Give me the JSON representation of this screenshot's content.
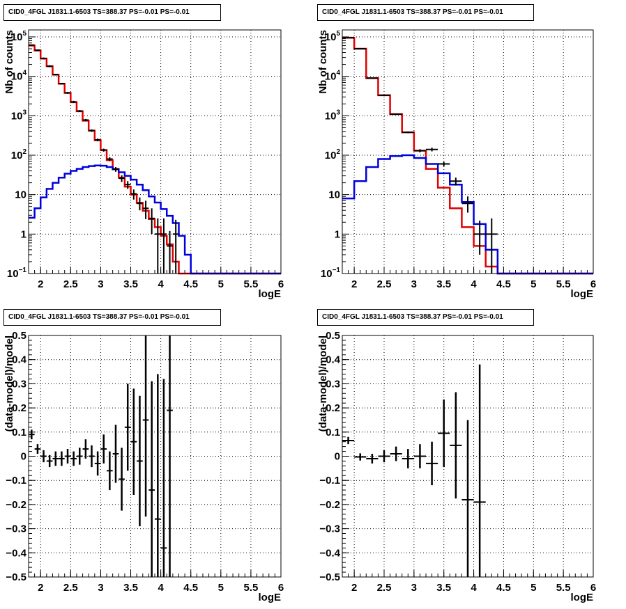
{
  "chart_data": [
    {
      "type": "histogram",
      "title": "CID0_4FGL J1831.1-6503 TS=388.37 PS=-0.01 PS=-0.01",
      "xlabel": "logE",
      "ylabel": "Nb of counts",
      "xlim": [
        1.8,
        6
      ],
      "ylim": [
        0.1,
        150000
      ],
      "yscale": "log",
      "grid": true,
      "x_ticks": [
        "2",
        "2.5",
        "3",
        "3.5",
        "4",
        "4.5",
        "5",
        "5.5",
        "6"
      ],
      "y_ticks": [
        "10^-1",
        "1",
        "10",
        "10^2",
        "10^3",
        "10^4",
        "10^5"
      ],
      "bin_edges": [
        1.8,
        1.9,
        2.0,
        2.1,
        2.2,
        2.3,
        2.4,
        2.5,
        2.6,
        2.7,
        2.8,
        2.9,
        3.0,
        3.1,
        3.2,
        3.3,
        3.4,
        3.5,
        3.6,
        3.7,
        3.8,
        3.9,
        4.0,
        4.1,
        4.2,
        4.3,
        4.4,
        4.5,
        4.6,
        4.7,
        4.8,
        4.9,
        5.0,
        5.1,
        5.2,
        5.3,
        5.4,
        5.5,
        5.6,
        5.7,
        5.8,
        5.9,
        6.0
      ],
      "series": [
        {
          "color": "#e00000",
          "values": [
            60000,
            45000,
            28000,
            18000,
            11000,
            6500,
            3800,
            2200,
            1300,
            750,
            420,
            240,
            135,
            75,
            45,
            27,
            16,
            10,
            6.2,
            3.9,
            2.4,
            1.5,
            0.9,
            0.55,
            0.2,
            0.1,
            0.1,
            0.1,
            0.1,
            0.1,
            0.1,
            0.1,
            0.1,
            0.1,
            0.1,
            0.1,
            0.1,
            0.1,
            0.1,
            0.1,
            0.1,
            0.1
          ]
        },
        {
          "color": "#0000dd",
          "values": [
            2.6,
            4.5,
            8.5,
            14,
            20,
            27,
            34,
            40,
            45,
            50,
            53,
            55,
            54,
            50,
            44,
            37,
            30,
            24,
            18,
            13,
            9,
            6.3,
            4.3,
            2.9,
            1.9,
            0.9,
            0.3,
            0.1,
            0.1,
            0.1,
            0.1,
            0.1,
            0.1,
            0.1,
            0.1,
            0.1,
            0.1,
            0.1,
            0.1,
            0.1,
            0.1,
            0.1
          ]
        }
      ],
      "data_points": [
        {
          "x": 1.85,
          "y": 62000,
          "lo": 60000,
          "hi": 64000
        },
        {
          "x": 1.95,
          "y": 46000,
          "lo": 44000,
          "hi": 48000
        },
        {
          "x": 2.05,
          "y": 28500,
          "lo": 27000,
          "hi": 30000
        },
        {
          "x": 2.15,
          "y": 18000,
          "lo": 17000,
          "hi": 19000
        },
        {
          "x": 2.25,
          "y": 11000,
          "lo": 10500,
          "hi": 11500
        },
        {
          "x": 2.35,
          "y": 6500,
          "lo": 6200,
          "hi": 6800
        },
        {
          "x": 2.45,
          "y": 3800,
          "lo": 3600,
          "hi": 4000
        },
        {
          "x": 2.55,
          "y": 2250,
          "lo": 2100,
          "hi": 2400
        },
        {
          "x": 2.65,
          "y": 1320,
          "lo": 1240,
          "hi": 1400
        },
        {
          "x": 2.75,
          "y": 780,
          "lo": 730,
          "hi": 830
        },
        {
          "x": 2.85,
          "y": 420,
          "lo": 390,
          "hi": 450
        },
        {
          "x": 2.95,
          "y": 245,
          "lo": 225,
          "hi": 265
        },
        {
          "x": 3.05,
          "y": 135,
          "lo": 123,
          "hi": 147
        },
        {
          "x": 3.15,
          "y": 80,
          "lo": 71,
          "hi": 89
        },
        {
          "x": 3.25,
          "y": 44,
          "lo": 38,
          "hi": 50
        },
        {
          "x": 3.35,
          "y": 26,
          "lo": 21,
          "hi": 31
        },
        {
          "x": 3.45,
          "y": 18,
          "lo": 14,
          "hi": 22
        },
        {
          "x": 3.55,
          "y": 10.5,
          "lo": 7.5,
          "hi": 13.5
        },
        {
          "x": 3.65,
          "y": 6,
          "lo": 4,
          "hi": 8.5
        },
        {
          "x": 3.75,
          "y": 4.5,
          "lo": 2.4,
          "hi": 7
        },
        {
          "x": 3.85,
          "y": 2.5,
          "lo": 1,
          "hi": 4.5
        },
        {
          "x": 3.95,
          "y": 1.0,
          "lo": 0.1,
          "hi": 2.5
        },
        {
          "x": 4.05,
          "y": 1.0,
          "lo": 0.1,
          "hi": 2.5
        },
        {
          "x": 4.15,
          "y": 0.5,
          "lo": 0.1,
          "hi": 1.2
        },
        {
          "x": 4.25,
          "y": 1.0,
          "lo": 0.1,
          "hi": 2.3
        }
      ]
    },
    {
      "type": "histogram",
      "title": "CID0_4FGL J1831.1-6503 TS=388.37 PS=-0.01 PS=-0.01",
      "xlabel": "logE",
      "ylabel": "Nb of counts",
      "xlim": [
        1.8,
        6
      ],
      "ylim": [
        0.1,
        150000
      ],
      "yscale": "log",
      "grid": true,
      "x_ticks": [
        "2",
        "2.5",
        "3",
        "3.5",
        "4",
        "4.5",
        "5",
        "5.5",
        "6"
      ],
      "y_ticks": [
        "10^-1",
        "1",
        "10",
        "10^2",
        "10^3",
        "10^4",
        "10^5"
      ],
      "bin_edges": [
        1.8,
        2.0,
        2.2,
        2.4,
        2.6,
        2.8,
        3.0,
        3.2,
        3.4,
        3.6,
        3.8,
        4.0,
        4.2,
        4.4,
        4.6,
        4.8,
        5.0,
        5.2,
        5.4,
        5.6,
        5.8,
        6.0
      ],
      "series": [
        {
          "color": "#e00000",
          "values": [
            95000,
            50000,
            9000,
            3300,
            1100,
            380,
            130,
            45,
            15,
            4.5,
            1.5,
            0.5,
            0.15,
            0.1,
            0.1,
            0.1,
            0.1,
            0.1,
            0.1,
            0.1,
            0.1
          ]
        },
        {
          "color": "#0000dd",
          "values": [
            8,
            22,
            50,
            80,
            95,
            100,
            85,
            60,
            35,
            18,
            6.5,
            1.8,
            0.4,
            0.1,
            0.1,
            0.1,
            0.1,
            0.1,
            0.1,
            0.1,
            0.1
          ]
        }
      ],
      "data_points": [
        {
          "x": 1.9,
          "y": 95000,
          "lo": 93000,
          "hi": 97000
        },
        {
          "x": 2.1,
          "y": 50000,
          "lo": 49000,
          "hi": 51000
        },
        {
          "x": 2.3,
          "y": 9000,
          "lo": 8800,
          "hi": 9200
        },
        {
          "x": 2.5,
          "y": 3300,
          "lo": 3200,
          "hi": 3400
        },
        {
          "x": 2.7,
          "y": 1100,
          "lo": 1060,
          "hi": 1140
        },
        {
          "x": 2.9,
          "y": 380,
          "lo": 360,
          "hi": 400
        },
        {
          "x": 3.1,
          "y": 130,
          "lo": 118,
          "hi": 142
        },
        {
          "x": 3.3,
          "y": 140,
          "lo": 125,
          "hi": 155
        },
        {
          "x": 3.5,
          "y": 60,
          "lo": 52,
          "hi": 68
        },
        {
          "x": 3.7,
          "y": 22,
          "lo": 17,
          "hi": 27
        },
        {
          "x": 3.9,
          "y": 6,
          "lo": 3.5,
          "hi": 9
        },
        {
          "x": 4.1,
          "y": 1.0,
          "lo": 0.3,
          "hi": 2.2
        },
        {
          "x": 4.3,
          "y": 1.0,
          "lo": 0.1,
          "hi": 2.5
        }
      ]
    },
    {
      "type": "scatter",
      "title": "CID0_4FGL J1831.1-6503 TS=388.37 PS=-0.01 PS=-0.01",
      "xlabel": "logE",
      "ylabel": "(data-model)/model",
      "xlim": [
        1.8,
        6
      ],
      "ylim": [
        -0.5,
        0.5
      ],
      "grid": true,
      "x_ticks": [
        "2",
        "2.5",
        "3",
        "3.5",
        "4",
        "4.5",
        "5",
        "5.5",
        "6"
      ],
      "y_ticks": [
        "-0.5",
        "-0.4",
        "-0.3",
        "-0.2",
        "-0.1",
        "0",
        "0.1",
        "0.2",
        "0.3",
        "0.4",
        "0.5"
      ],
      "xerr": 0.05,
      "points": [
        {
          "x": 1.85,
          "y": 0.09,
          "e": 0.02
        },
        {
          "x": 1.95,
          "y": 0.03,
          "e": 0.02
        },
        {
          "x": 2.05,
          "y": 0.0,
          "e": 0.025
        },
        {
          "x": 2.15,
          "y": -0.02,
          "e": 0.025
        },
        {
          "x": 2.25,
          "y": -0.01,
          "e": 0.03
        },
        {
          "x": 2.35,
          "y": -0.01,
          "e": 0.03
        },
        {
          "x": 2.45,
          "y": 0.0,
          "e": 0.03
        },
        {
          "x": 2.55,
          "y": -0.01,
          "e": 0.03
        },
        {
          "x": 2.65,
          "y": 0.0,
          "e": 0.035
        },
        {
          "x": 2.75,
          "y": 0.03,
          "e": 0.04
        },
        {
          "x": 2.85,
          "y": 0.0,
          "e": 0.045
        },
        {
          "x": 2.95,
          "y": -0.03,
          "e": 0.05
        },
        {
          "x": 3.05,
          "y": 0.03,
          "e": 0.06
        },
        {
          "x": 3.15,
          "y": -0.06,
          "e": 0.08
        },
        {
          "x": 3.25,
          "y": 0.01,
          "e": 0.12
        },
        {
          "x": 3.35,
          "y": -0.095,
          "e": 0.13
        },
        {
          "x": 3.45,
          "y": 0.12,
          "e": 0.18
        },
        {
          "x": 3.55,
          "y": 0.06,
          "e": 0.22
        },
        {
          "x": 3.65,
          "y": -0.02,
          "e": 0.27
        },
        {
          "x": 3.75,
          "y": 0.15,
          "e": 0.4
        },
        {
          "x": 3.85,
          "y": -0.14,
          "e": 0.45
        },
        {
          "x": 3.95,
          "y": -0.26,
          "e": 0.6
        },
        {
          "x": 4.05,
          "y": -0.38,
          "e": 0.7
        },
        {
          "x": 4.15,
          "y": 0.19,
          "e": 0.8
        }
      ]
    },
    {
      "type": "scatter",
      "title": "CID0_4FGL J1831.1-6503 TS=388.37 PS=-0.01 PS=-0.01",
      "xlabel": "logE",
      "ylabel": "(data-model)/model",
      "xlim": [
        1.8,
        6
      ],
      "ylim": [
        -0.5,
        0.5
      ],
      "grid": true,
      "x_ticks": [
        "2",
        "2.5",
        "3",
        "3.5",
        "4",
        "4.5",
        "5",
        "5.5",
        "6"
      ],
      "y_ticks": [
        "-0.5",
        "-0.4",
        "-0.3",
        "-0.2",
        "-0.1",
        "0",
        "0.1",
        "0.2",
        "0.3",
        "0.4",
        "0.5"
      ],
      "xerr": 0.1,
      "points": [
        {
          "x": 1.9,
          "y": 0.065,
          "e": 0.015
        },
        {
          "x": 2.1,
          "y": -0.003,
          "e": 0.015
        },
        {
          "x": 2.3,
          "y": -0.01,
          "e": 0.02
        },
        {
          "x": 2.5,
          "y": 0.0,
          "e": 0.025
        },
        {
          "x": 2.7,
          "y": 0.01,
          "e": 0.03
        },
        {
          "x": 2.9,
          "y": -0.01,
          "e": 0.04
        },
        {
          "x": 3.1,
          "y": 0.0,
          "e": 0.05
        },
        {
          "x": 3.3,
          "y": -0.03,
          "e": 0.09
        },
        {
          "x": 3.5,
          "y": 0.095,
          "e": 0.14
        },
        {
          "x": 3.7,
          "y": 0.045,
          "e": 0.22
        },
        {
          "x": 3.9,
          "y": -0.18,
          "e": 0.33
        },
        {
          "x": 4.1,
          "y": -0.19,
          "e": 0.57
        }
      ]
    }
  ]
}
